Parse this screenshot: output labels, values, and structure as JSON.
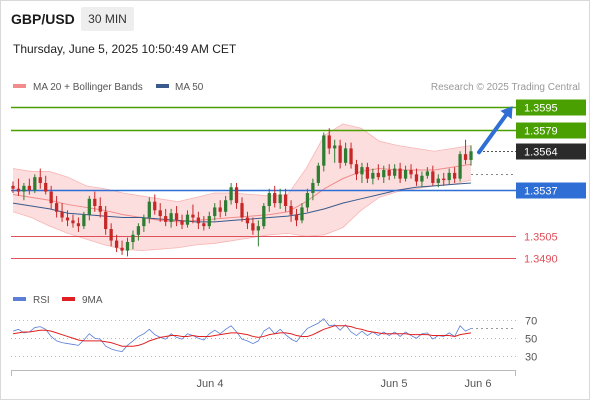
{
  "header": {
    "pair": "GBP/USD",
    "timeframe": "30 MIN",
    "datetime": "Thursday, June 5, 2025 10:50:49 AM CET",
    "credit": "Research © 2025 Trading Central"
  },
  "legend_top": [
    {
      "label": "MA 20 + Bollinger Bands",
      "color": "#f28b8b"
    },
    {
      "label": "MA 50",
      "color": "#3a5a8c"
    }
  ],
  "legend_bottom": [
    {
      "label": "RSI",
      "color": "#5b7fd6"
    },
    {
      "label": "9MA",
      "color": "#e02020"
    }
  ],
  "colors": {
    "resistance": "#4aa000",
    "pivot": "#2f6ed4",
    "support": "#e0505a",
    "current": "#2b2b2b",
    "candle_up": "#2f7d32",
    "candle_down": "#c62828",
    "band_fill": "#fbd3d3",
    "ma20": "#f28b8b",
    "ma50": "#3a5a8c",
    "arrow": "#2f6ed4"
  },
  "chart_data": {
    "type": "candlestick",
    "price_ylim": [
      1.3476,
      1.3601
    ],
    "rsi_ylim": [
      21,
      75
    ],
    "x_ticks": [
      "Jun 4",
      "Jun 5",
      "Jun 6"
    ],
    "levels": [
      {
        "label": "1.3595",
        "value": 1.3595,
        "kind": "resistance"
      },
      {
        "label": "1.3579",
        "value": 1.3579,
        "kind": "resistance"
      },
      {
        "label": "1.3564",
        "value": 1.3564,
        "kind": "current"
      },
      {
        "label": "1.3537",
        "value": 1.3537,
        "kind": "pivot"
      },
      {
        "label": "1.3505",
        "value": 1.3505,
        "kind": "support"
      },
      {
        "label": "1.3490",
        "value": 1.349,
        "kind": "support"
      }
    ],
    "rsi_levels": [
      70,
      50,
      30
    ],
    "rsi_tick_labels": [
      "70",
      "50",
      "30"
    ],
    "candles": [
      [
        1.354,
        1.3543,
        1.3535,
        1.3538
      ],
      [
        1.3538,
        1.3545,
        1.3533,
        1.3536
      ],
      [
        1.3536,
        1.3542,
        1.353,
        1.354
      ],
      [
        1.354,
        1.3545,
        1.3534,
        1.3537
      ],
      [
        1.3537,
        1.3548,
        1.3535,
        1.3546
      ],
      [
        1.3546,
        1.3552,
        1.3538,
        1.3542
      ],
      [
        1.3542,
        1.3547,
        1.3534,
        1.3536
      ],
      [
        1.3536,
        1.354,
        1.3524,
        1.3528
      ],
      [
        1.3528,
        1.3533,
        1.3518,
        1.3522
      ],
      [
        1.3522,
        1.3528,
        1.3515,
        1.3518
      ],
      [
        1.3518,
        1.3523,
        1.3512,
        1.3516
      ],
      [
        1.3516,
        1.352,
        1.3511,
        1.3514
      ],
      [
        1.3514,
        1.3518,
        1.3508,
        1.3512
      ],
      [
        1.3512,
        1.3522,
        1.351,
        1.352
      ],
      [
        1.352,
        1.3533,
        1.3516,
        1.3531
      ],
      [
        1.3531,
        1.3536,
        1.3522,
        1.3526
      ],
      [
        1.3526,
        1.3532,
        1.3518,
        1.3522
      ],
      [
        1.3522,
        1.3526,
        1.3506,
        1.351
      ],
      [
        1.351,
        1.3514,
        1.3498,
        1.3502
      ],
      [
        1.3502,
        1.3506,
        1.3494,
        1.3497
      ],
      [
        1.3497,
        1.3502,
        1.3492,
        1.3495
      ],
      [
        1.3495,
        1.3504,
        1.3491,
        1.3501
      ],
      [
        1.3501,
        1.3509,
        1.3496,
        1.3506
      ],
      [
        1.3506,
        1.3514,
        1.3502,
        1.3512
      ],
      [
        1.3512,
        1.352,
        1.3508,
        1.3518
      ],
      [
        1.3518,
        1.3532,
        1.3514,
        1.3529
      ],
      [
        1.3529,
        1.3534,
        1.352,
        1.3523
      ],
      [
        1.3523,
        1.3528,
        1.3515,
        1.3519
      ],
      [
        1.3519,
        1.3524,
        1.3512,
        1.3515
      ],
      [
        1.3515,
        1.3524,
        1.3511,
        1.3521
      ],
      [
        1.3521,
        1.3526,
        1.3512,
        1.3516
      ],
      [
        1.3516,
        1.352,
        1.351,
        1.3513
      ],
      [
        1.3513,
        1.3523,
        1.3511,
        1.352
      ],
      [
        1.352,
        1.3527,
        1.3514,
        1.3518
      ],
      [
        1.3518,
        1.3522,
        1.351,
        1.3514
      ],
      [
        1.3514,
        1.3519,
        1.3509,
        1.3512
      ],
      [
        1.3512,
        1.3522,
        1.351,
        1.3519
      ],
      [
        1.3519,
        1.3528,
        1.3516,
        1.3525
      ],
      [
        1.3525,
        1.353,
        1.3518,
        1.3522
      ],
      [
        1.3522,
        1.3533,
        1.3519,
        1.353
      ],
      [
        1.353,
        1.3542,
        1.3527,
        1.3539
      ],
      [
        1.3539,
        1.3542,
        1.3524,
        1.3528
      ],
      [
        1.3528,
        1.3532,
        1.3515,
        1.3518
      ],
      [
        1.3518,
        1.3522,
        1.351,
        1.3514
      ],
      [
        1.3514,
        1.3518,
        1.3506,
        1.3509
      ],
      [
        1.3509,
        1.3516,
        1.3498,
        1.3512
      ],
      [
        1.3512,
        1.3528,
        1.351,
        1.3526
      ],
      [
        1.3526,
        1.3538,
        1.3522,
        1.3535
      ],
      [
        1.3535,
        1.354,
        1.3525,
        1.3528
      ],
      [
        1.3528,
        1.3538,
        1.3524,
        1.3534
      ],
      [
        1.3534,
        1.3538,
        1.3522,
        1.3526
      ],
      [
        1.3526,
        1.353,
        1.3515,
        1.352
      ],
      [
        1.352,
        1.3524,
        1.3512,
        1.3516
      ],
      [
        1.3516,
        1.3528,
        1.3514,
        1.3525
      ],
      [
        1.3525,
        1.3538,
        1.3522,
        1.3535
      ],
      [
        1.3535,
        1.3545,
        1.353,
        1.3542
      ],
      [
        1.3542,
        1.3556,
        1.354,
        1.3554
      ],
      [
        1.3554,
        1.3577,
        1.355,
        1.3575
      ],
      [
        1.3575,
        1.358,
        1.3562,
        1.3566
      ],
      [
        1.3566,
        1.3572,
        1.3556,
        1.3568
      ],
      [
        1.3568,
        1.3572,
        1.3552,
        1.3556
      ],
      [
        1.3556,
        1.357,
        1.3554,
        1.3566
      ],
      [
        1.3566,
        1.357,
        1.3552,
        1.3555
      ],
      [
        1.3555,
        1.3558,
        1.3544,
        1.3548
      ],
      [
        1.3548,
        1.3556,
        1.3542,
        1.3553
      ],
      [
        1.3553,
        1.3556,
        1.3542,
        1.3545
      ],
      [
        1.3545,
        1.3552,
        1.3541,
        1.3549
      ],
      [
        1.3549,
        1.3555,
        1.3544,
        1.3546
      ],
      [
        1.3546,
        1.3554,
        1.3542,
        1.3551
      ],
      [
        1.3551,
        1.3555,
        1.3544,
        1.3547
      ],
      [
        1.3547,
        1.3555,
        1.3545,
        1.3552
      ],
      [
        1.3552,
        1.3556,
        1.3542,
        1.3545
      ],
      [
        1.3545,
        1.3554,
        1.3543,
        1.3551
      ],
      [
        1.3551,
        1.3555,
        1.3545,
        1.3548
      ],
      [
        1.3548,
        1.3552,
        1.354,
        1.3543
      ],
      [
        1.3543,
        1.355,
        1.3539,
        1.3547
      ],
      [
        1.3547,
        1.3553,
        1.3545,
        1.355
      ],
      [
        1.355,
        1.3554,
        1.354,
        1.3542
      ],
      [
        1.3542,
        1.3548,
        1.3539,
        1.3545
      ],
      [
        1.3545,
        1.3549,
        1.354,
        1.3544
      ],
      [
        1.3544,
        1.3552,
        1.3541,
        1.3549
      ],
      [
        1.3549,
        1.3553,
        1.3542,
        1.3545
      ],
      [
        1.3545,
        1.3564,
        1.3543,
        1.3562
      ],
      [
        1.3562,
        1.3572,
        1.3555,
        1.3558
      ],
      [
        1.3558,
        1.3568,
        1.3554,
        1.3564
      ]
    ],
    "ma20": [
      1.3534,
      1.3532,
      1.353,
      1.3527,
      1.3525,
      1.3523,
      1.352,
      1.3518,
      1.3516,
      1.3515,
      1.3516,
      1.3517,
      1.3518,
      1.3519,
      1.352,
      1.3522,
      1.3529,
      1.3538,
      1.3545,
      1.355,
      1.3552,
      1.3551,
      1.3551,
      1.3551,
      1.3553,
      1.3555
    ],
    "ma50": [
      1.3528,
      1.3526,
      1.3524,
      1.3521,
      1.352,
      1.3519,
      1.3518,
      1.3518,
      1.3517,
      1.3516,
      1.3515,
      1.3515,
      1.3516,
      1.3517,
      1.3518,
      1.3519,
      1.3521,
      1.3524,
      1.3528,
      1.3531,
      1.3534,
      1.3537,
      1.3539,
      1.354,
      1.3541,
      1.3542
    ],
    "bb_upper": [
      1.3552,
      1.355,
      1.355,
      1.3546,
      1.354,
      1.3538,
      1.3535,
      1.3533,
      1.3531,
      1.3529,
      1.3532,
      1.3535,
      1.3535,
      1.3534,
      1.3533,
      1.3534,
      1.3552,
      1.3575,
      1.3583,
      1.358,
      1.3571,
      1.3568,
      1.3566,
      1.3564,
      1.3566,
      1.3568
    ],
    "bb_lower": [
      1.3522,
      1.3518,
      1.3512,
      1.3507,
      1.3503,
      1.3499,
      1.3496,
      1.3495,
      1.3496,
      1.3497,
      1.3499,
      1.35,
      1.3502,
      1.3504,
      1.3506,
      1.3507,
      1.3505,
      1.3506,
      1.3511,
      1.3523,
      1.3532,
      1.3536,
      1.3538,
      1.354,
      1.3541,
      1.3544
    ],
    "rsi": [
      58,
      60,
      56,
      57,
      62,
      63,
      60,
      52,
      47,
      45,
      44,
      43,
      42,
      48,
      55,
      50,
      49,
      41,
      38,
      36,
      35,
      42,
      47,
      52,
      55,
      60,
      54,
      51,
      49,
      55,
      51,
      49,
      55,
      53,
      50,
      48,
      55,
      59,
      55,
      60,
      64,
      57,
      49,
      47,
      44,
      47,
      58,
      62,
      55,
      60,
      54,
      49,
      46,
      54,
      61,
      64,
      67,
      72,
      64,
      65,
      59,
      65,
      57,
      53,
      58,
      53,
      57,
      53,
      57,
      53,
      57,
      52,
      57,
      53,
      50,
      55,
      56,
      49,
      53,
      52,
      56,
      52,
      64,
      58,
      61
    ],
    "rsi_ma": [
      55,
      56,
      57,
      57,
      58,
      59,
      59,
      58,
      56,
      54,
      52,
      50,
      48,
      47,
      47,
      47,
      47,
      46,
      45,
      43,
      41,
      41,
      41,
      42,
      44,
      47,
      49,
      51,
      52,
      53,
      53,
      52,
      52,
      53,
      52,
      52,
      52,
      53,
      54,
      55,
      56,
      56,
      55,
      54,
      52,
      51,
      52,
      54,
      55,
      56,
      56,
      55,
      53,
      52,
      52,
      54,
      57,
      60,
      62,
      64,
      64,
      64,
      63,
      61,
      60,
      58,
      57,
      56,
      55,
      55,
      55,
      55,
      55,
      54,
      54,
      54,
      54,
      53,
      53,
      53,
      53,
      52,
      54,
      55,
      56
    ]
  }
}
